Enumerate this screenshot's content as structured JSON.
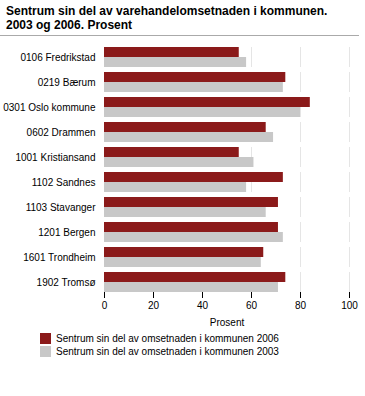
{
  "chart_data": {
    "type": "bar",
    "orientation": "horizontal",
    "title": "Sentrum sin del av varehandelomsetnaden i kommunen.",
    "subtitle": "2003 og 2006. Prosent",
    "categories": [
      "0106 Fredrikstad",
      "0219 Bærum",
      "0301 Oslo kommune",
      "0602 Drammen",
      "1001 Kristiansand",
      "1102 Sandnes",
      "1103 Stavanger",
      "1201 Bergen",
      "1601 Trondheim",
      "1902 Tromsø"
    ],
    "series": [
      {
        "name": "Sentrum sin del av omsetnaden i kommunen 2006",
        "color": "#8B1A1A",
        "values": [
          55,
          74,
          84,
          66,
          55,
          73,
          71,
          71,
          65,
          74
        ]
      },
      {
        "name": "Sentrum sin del av omsetnaden i kommunen 2003",
        "color": "#C8C8C8",
        "values": [
          58,
          73,
          80,
          69,
          61,
          58,
          66,
          73,
          64,
          71
        ]
      }
    ],
    "xlabel": "Prosent",
    "xlim": [
      0,
      100
    ],
    "xticks": [
      0,
      20,
      40,
      60,
      80,
      100
    ],
    "grid": true,
    "legend": "bottom"
  }
}
